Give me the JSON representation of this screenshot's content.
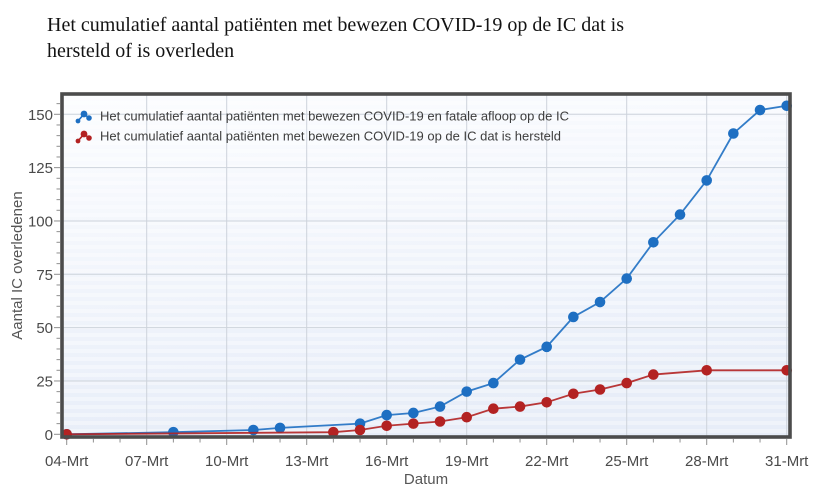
{
  "header": {
    "title": "Het cumulatief aantal patiënten met bewezen COVID-19 op de IC dat is hersteld of is overleden"
  },
  "chart_data": {
    "type": "line",
    "title": "Het cumulatief aantal patiënten met bewezen COVID-19 op de IC dat is hersteld of is overleden",
    "xlabel": "Datum",
    "ylabel": "Aantal IC overledenen",
    "x_axis": {
      "tick_labels": [
        "04-Mrt",
        "07-Mrt",
        "10-Mrt",
        "13-Mrt",
        "16-Mrt",
        "19-Mrt",
        "22-Mrt",
        "25-Mrt",
        "28-Mrt",
        "31-Mrt"
      ],
      "tick_days": [
        0,
        3,
        6,
        9,
        12,
        15,
        18,
        21,
        24,
        27
      ],
      "day_zero_date": "04-Mrt",
      "total_days": 28,
      "minor_tick_every_days": 1
    },
    "y_axis": {
      "ticks": [
        0,
        25,
        50,
        75,
        100,
        125,
        150
      ],
      "minor_step": 5,
      "min": 0,
      "max": 159
    },
    "grid": true,
    "legend_position": "top-left-inside",
    "series": [
      {
        "key": "fatal",
        "name": "Het cumulatief aantal patiënten met bewezen COVID-19 en fatale afloop op de IC",
        "color": "#1e6fc2",
        "marker": "circle",
        "points": [
          {
            "date": "04-Mrt",
            "value": 0
          },
          {
            "date": "08-Mrt",
            "value": 1
          },
          {
            "date": "11-Mrt",
            "value": 2
          },
          {
            "date": "12-Mrt",
            "value": 3
          },
          {
            "date": "15-Mrt",
            "value": 5
          },
          {
            "date": "16-Mrt",
            "value": 9
          },
          {
            "date": "17-Mrt",
            "value": 10
          },
          {
            "date": "18-Mrt",
            "value": 13
          },
          {
            "date": "19-Mrt",
            "value": 20
          },
          {
            "date": "20-Mrt",
            "value": 24
          },
          {
            "date": "21-Mrt",
            "value": 35
          },
          {
            "date": "22-Mrt",
            "value": 41
          },
          {
            "date": "23-Mrt",
            "value": 55
          },
          {
            "date": "24-Mrt",
            "value": 62
          },
          {
            "date": "25-Mrt",
            "value": 73
          },
          {
            "date": "26-Mrt",
            "value": 90
          },
          {
            "date": "27-Mrt",
            "value": 103
          },
          {
            "date": "28-Mrt",
            "value": 119
          },
          {
            "date": "29-Mrt",
            "value": 141
          },
          {
            "date": "30-Mrt",
            "value": 152
          },
          {
            "date": "31-Mrt",
            "value": 154
          }
        ]
      },
      {
        "key": "recovered",
        "name": "Het cumulatief aantal patiënten met bewezen COVID-19 op de IC dat is hersteld",
        "color": "#b32222",
        "marker": "circle",
        "points": [
          {
            "date": "04-Mrt",
            "value": 0
          },
          {
            "date": "14-Mrt",
            "value": 1
          },
          {
            "date": "15-Mrt",
            "value": 2
          },
          {
            "date": "16-Mrt",
            "value": 4
          },
          {
            "date": "17-Mrt",
            "value": 5
          },
          {
            "date": "18-Mrt",
            "value": 6
          },
          {
            "date": "19-Mrt",
            "value": 8
          },
          {
            "date": "20-Mrt",
            "value": 12
          },
          {
            "date": "21-Mrt",
            "value": 13
          },
          {
            "date": "22-Mrt",
            "value": 15
          },
          {
            "date": "23-Mrt",
            "value": 19
          },
          {
            "date": "24-Mrt",
            "value": 21
          },
          {
            "date": "25-Mrt",
            "value": 24
          },
          {
            "date": "26-Mrt",
            "value": 28
          },
          {
            "date": "28-Mrt",
            "value": 30
          },
          {
            "date": "31-Mrt",
            "value": 30
          }
        ]
      }
    ],
    "colors": {
      "frame": "#4c4c4c",
      "grid": "#cdd3db",
      "tick": "#8f8f8f",
      "tick_text": "#4a4a4a",
      "axis_title_text": "#565656",
      "legend_text": "#3d3d3d",
      "plot_bg_top": "#fbfcff",
      "plot_bg_bottom": "#e7edf8"
    }
  }
}
